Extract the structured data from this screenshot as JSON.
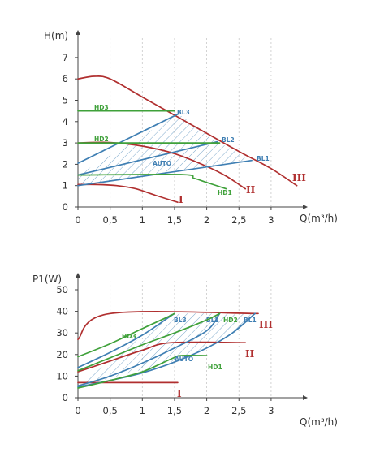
{
  "chart_data": [
    {
      "type": "line",
      "ylabel": "H(m)",
      "xlabel": "Q(m³/h)",
      "xlim": [
        0,
        3.6
      ],
      "ylim": [
        0,
        8
      ],
      "xticks": [
        0,
        0.5,
        1,
        1.5,
        2,
        2.5,
        3
      ],
      "xtick_labels": [
        "0",
        "0,5",
        "1",
        "1,5",
        "2",
        "2,5",
        "3"
      ],
      "yticks": [
        0,
        1,
        2,
        3,
        4,
        5,
        6,
        7
      ],
      "ytick_labels": [
        "0",
        "1",
        "2",
        "3",
        "4",
        "5",
        "6",
        "7"
      ],
      "grid": "vertical dotted",
      "auto_label": "AUTO",
      "colors": {
        "red": "#b02f2f",
        "blue": "#3f7fb3",
        "green": "#3fa13a",
        "hatch": "#3f7fb3"
      },
      "auto_region": [
        [
          0,
          1.5
        ],
        [
          1.56,
          4.36
        ],
        [
          2.17,
          3.06
        ],
        [
          2.7,
          2.18
        ],
        [
          0,
          1.0
        ]
      ],
      "series": [
        {
          "name": "I",
          "color": "red",
          "points": [
            [
              0,
              1.05
            ],
            [
              0.3,
              1.05
            ],
            [
              0.6,
              1.0
            ],
            [
              0.9,
              0.85
            ],
            [
              1.2,
              0.55
            ],
            [
              1.55,
              0.22
            ]
          ]
        },
        {
          "name": "II",
          "color": "red",
          "points": [
            [
              0,
              3.0
            ],
            [
              0.5,
              3.02
            ],
            [
              1.0,
              2.85
            ],
            [
              1.5,
              2.5
            ],
            [
              2.0,
              1.9
            ],
            [
              2.3,
              1.45
            ],
            [
              2.6,
              0.85
            ]
          ]
        },
        {
          "name": "III",
          "color": "red",
          "points": [
            [
              0,
              6.0
            ],
            [
              0.25,
              6.12
            ],
            [
              0.5,
              6.0
            ],
            [
              1.0,
              5.15
            ],
            [
              1.5,
              4.3
            ],
            [
              2.0,
              3.45
            ],
            [
              2.5,
              2.6
            ],
            [
              3.0,
              1.8
            ],
            [
              3.4,
              1.0
            ]
          ]
        },
        {
          "name": "BL1",
          "color": "blue",
          "points": [
            [
              0,
              1.0
            ],
            [
              2.7,
              2.18
            ]
          ]
        },
        {
          "name": "BL2",
          "color": "blue",
          "points": [
            [
              0,
              1.5
            ],
            [
              2.17,
              3.06
            ]
          ]
        },
        {
          "name": "BL3",
          "color": "blue",
          "points": [
            [
              0,
              2.05
            ],
            [
              1.56,
              4.36
            ]
          ]
        },
        {
          "name": "HD1",
          "color": "green",
          "points": [
            [
              0,
              1.5
            ],
            [
              1.6,
              1.52
            ],
            [
              1.8,
              1.35
            ],
            [
              2.0,
              1.15
            ],
            [
              2.3,
              0.85
            ]
          ]
        },
        {
          "name": "HD2",
          "color": "green",
          "points": [
            [
              0,
              3.0
            ],
            [
              2.2,
              3.0
            ]
          ]
        },
        {
          "name": "HD3",
          "color": "green",
          "points": [
            [
              0,
              4.5
            ],
            [
              1.5,
              4.5
            ]
          ]
        }
      ]
    },
    {
      "type": "line",
      "ylabel": "P1(W)",
      "xlabel": "Q(m³/h)",
      "xlim": [
        0,
        3.3
      ],
      "ylim": [
        0,
        60
      ],
      "xticks": [
        0,
        0.5,
        1,
        1.5,
        2,
        2.5,
        3
      ],
      "xtick_labels": [
        "0",
        "0,5",
        "1",
        "1,5",
        "2",
        "2,5",
        "3"
      ],
      "yticks": [
        0,
        10,
        20,
        30,
        40,
        50
      ],
      "ytick_labels": [
        "0",
        "10",
        "20",
        "30",
        "40",
        "50"
      ],
      "grid": "vertical dotted",
      "auto_label": "AUTO",
      "colors": {
        "red": "#b02f2f",
        "blue": "#3f7fb3",
        "green": "#3fa13a",
        "hatch": "#3f7fb3"
      },
      "auto_region": [
        [
          0,
          5.5
        ],
        [
          1.45,
          39.0
        ],
        [
          2.75,
          39.0
        ],
        [
          2.2,
          25.0
        ],
        [
          1.5,
          17.0
        ],
        [
          0,
          5.0
        ]
      ],
      "series": [
        {
          "name": "I",
          "color": "red",
          "points": [
            [
              0,
              7
            ],
            [
              1.55,
              7
            ]
          ]
        },
        {
          "name": "II",
          "color": "red",
          "points": [
            [
              0,
              12
            ],
            [
              0.5,
              17
            ],
            [
              1.0,
              22
            ],
            [
              1.45,
              25.5
            ],
            [
              2.6,
              25.5
            ]
          ]
        },
        {
          "name": "III",
          "color": "red",
          "points": [
            [
              0,
              27
            ],
            [
              0.5,
              39
            ],
            [
              2.8,
              39
            ]
          ]
        },
        {
          "name": "BL1",
          "color": "blue",
          "points": [
            [
              0,
              5
            ],
            [
              0.5,
              8
            ],
            [
              1.0,
              11.5
            ],
            [
              1.5,
              16.5
            ],
            [
              2.0,
              23
            ],
            [
              2.4,
              30
            ],
            [
              2.75,
              39
            ]
          ]
        },
        {
          "name": "BL2",
          "color": "blue",
          "points": [
            [
              0,
              5.5
            ],
            [
              0.5,
              10
            ],
            [
              1.0,
              16
            ],
            [
              1.5,
              23
            ],
            [
              2.0,
              31
            ],
            [
              2.2,
              39
            ]
          ]
        },
        {
          "name": "BL3",
          "color": "blue",
          "points": [
            [
              0,
              14
            ],
            [
              0.5,
              21
            ],
            [
              1.0,
              29
            ],
            [
              1.4,
              37
            ],
            [
              1.5,
              39
            ]
          ]
        },
        {
          "name": "HD1",
          "color": "green",
          "points": [
            [
              0,
              4.5
            ],
            [
              0.5,
              8
            ],
            [
              1.0,
              12
            ],
            [
              1.45,
              18
            ],
            [
              1.6,
              19.5
            ],
            [
              2.0,
              19.5
            ]
          ]
        },
        {
          "name": "HD2",
          "color": "green",
          "points": [
            [
              0,
              12.5
            ],
            [
              0.5,
              18.5
            ],
            [
              1.0,
              24.5
            ],
            [
              1.5,
              30
            ],
            [
              2.0,
              36
            ],
            [
              2.2,
              39
            ]
          ]
        },
        {
          "name": "HD3",
          "color": "green",
          "points": [
            [
              0,
              19
            ],
            [
              0.5,
              25
            ],
            [
              1.0,
              32
            ],
            [
              1.4,
              37.5
            ],
            [
              1.5,
              39
            ]
          ]
        }
      ]
    }
  ]
}
